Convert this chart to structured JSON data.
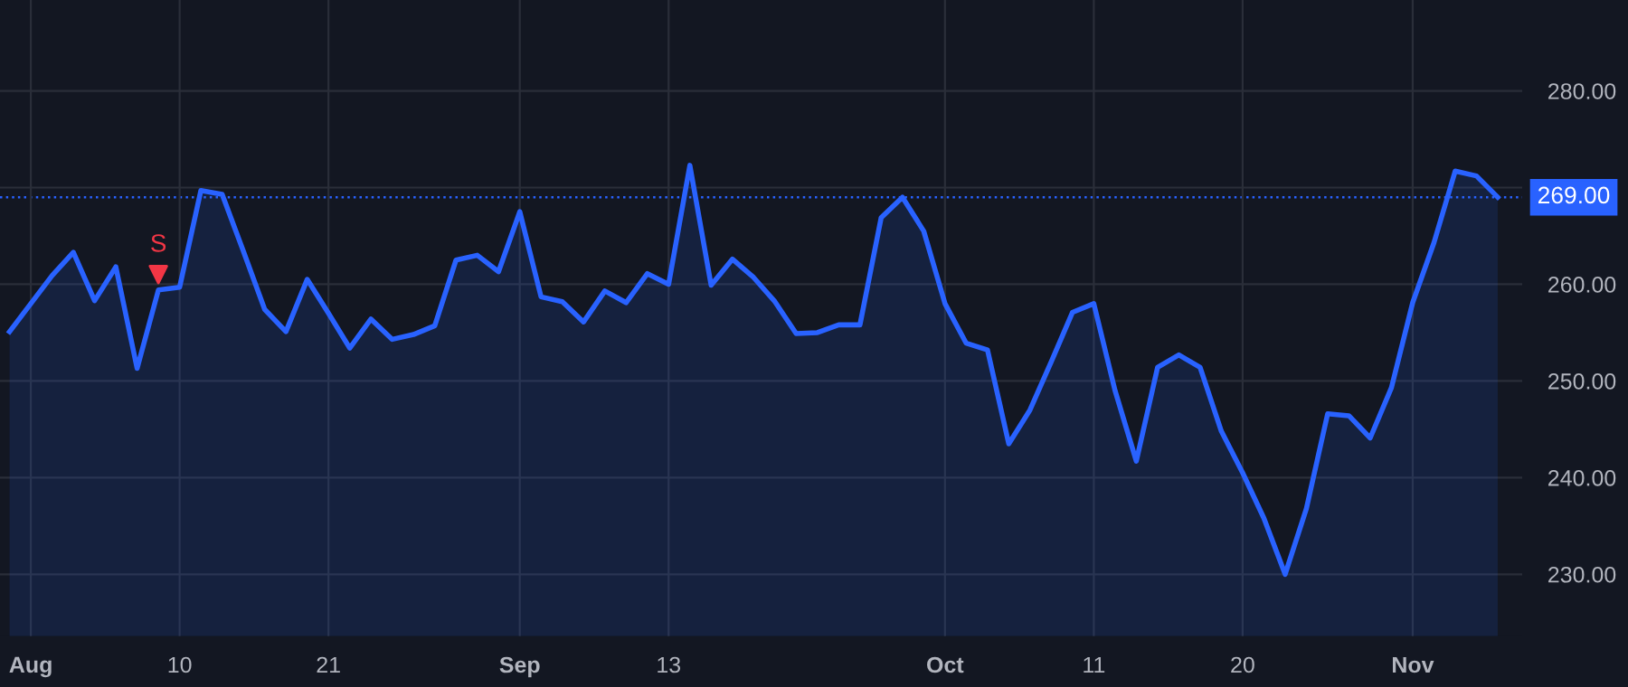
{
  "chart_data": {
    "type": "area",
    "categories": [
      null,
      "Aug",
      null,
      null,
      null,
      null,
      null,
      null,
      "10",
      null,
      null,
      null,
      null,
      null,
      null,
      "21",
      null,
      null,
      null,
      null,
      null,
      null,
      null,
      null,
      "Sep",
      null,
      null,
      null,
      null,
      null,
      null,
      "13",
      null,
      null,
      null,
      null,
      null,
      null,
      null,
      null,
      null,
      null,
      null,
      null,
      "Oct",
      null,
      null,
      null,
      null,
      null,
      null,
      "11",
      null,
      null,
      null,
      null,
      null,
      null,
      "20",
      null,
      null,
      null,
      null,
      null,
      null,
      null,
      "Nov",
      null,
      null,
      null,
      null
    ],
    "series": [
      {
        "color": "#2962ff",
        "values": [
          255.1,
          258.0,
          260.9,
          263.3,
          258.3,
          261.8,
          251.3,
          259.4,
          259.7,
          269.7,
          269.3,
          263.4,
          257.4,
          255.1,
          260.5,
          257.0,
          253.4,
          256.4,
          254.3,
          254.8,
          255.7,
          262.5,
          263.0,
          261.3,
          267.5,
          258.7,
          258.2,
          256.1,
          259.3,
          258.1,
          261.1,
          260.0,
          272.3,
          259.9,
          262.6,
          260.7,
          258.2,
          254.9,
          255.0,
          255.8,
          255.8,
          266.9,
          269.0,
          265.5,
          258.0,
          253.9,
          253.2,
          243.5,
          247.0,
          252.0,
          257.1,
          258.0,
          249.0,
          241.7,
          251.4,
          252.7,
          251.4,
          244.8,
          240.5,
          235.8,
          230.0,
          236.8,
          246.6,
          246.4,
          244.1,
          249.3,
          258.1,
          264.3,
          271.7,
          271.2,
          269.0
        ]
      },
      {
        "type": "scatter",
        "name": "S",
        "color": "#f23645",
        "marker": "triangle",
        "values": [
          null,
          null,
          null,
          null,
          null,
          null,
          null,
          261.0,
          null,
          null,
          null,
          null,
          null,
          null,
          null,
          null,
          null,
          null,
          null,
          null,
          null,
          null,
          null,
          null,
          null,
          null,
          null,
          null,
          null,
          null,
          null,
          null,
          null,
          null,
          null,
          null,
          null,
          null,
          null,
          null,
          null,
          null,
          null,
          null,
          null,
          null,
          null,
          null,
          null,
          null,
          null,
          null,
          null,
          null,
          null,
          null,
          null,
          null,
          null,
          null,
          null,
          null,
          null,
          null,
          null,
          null,
          null,
          null,
          null,
          null,
          null
        ]
      }
    ],
    "ylim": [
      223.6,
      289.4
    ],
    "yticks": [
      {
        "value": 230,
        "label": "230.00"
      },
      {
        "value": 240,
        "label": "240.00"
      },
      {
        "value": 250,
        "label": "250.00"
      },
      {
        "value": 260,
        "label": "260.00"
      },
      {
        "value": 270,
        "label": null
      },
      {
        "value": 280,
        "label": "280.00"
      }
    ],
    "ref_lines": [
      {
        "axis": "y",
        "value": 269,
        "label": "269.00",
        "color": "#2962ff",
        "line_style": "dotted"
      }
    ],
    "grid": true
  }
}
